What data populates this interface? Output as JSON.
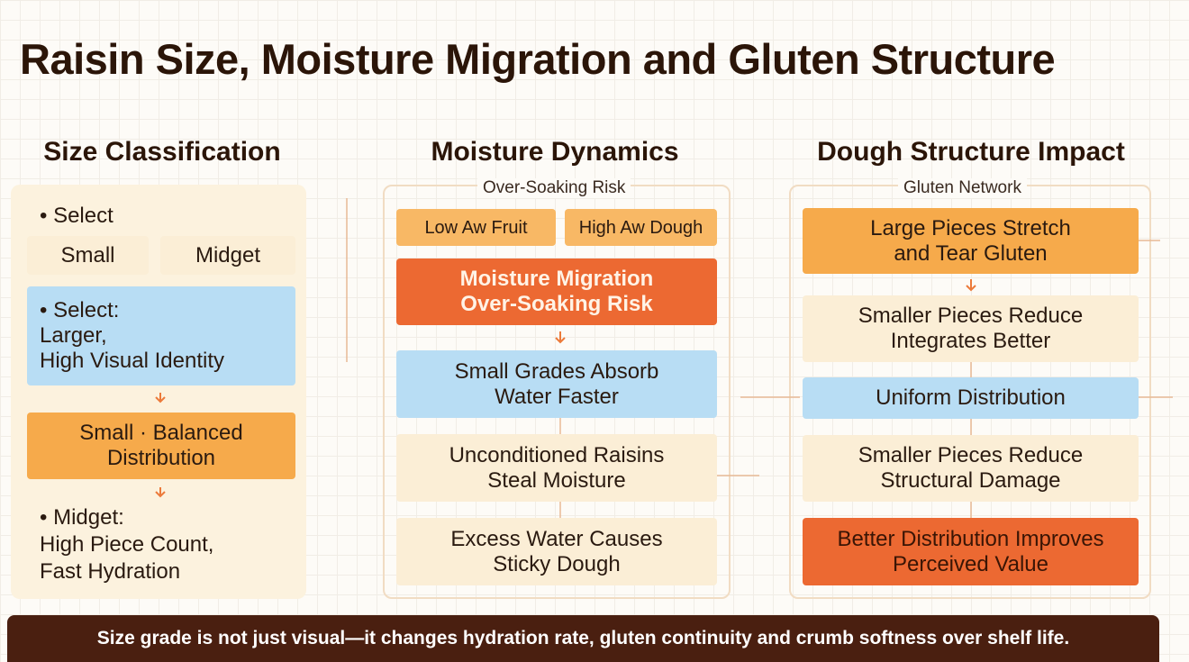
{
  "title": "Raisin Size, Moisture Migration and Gluten Structure",
  "columns": [
    {
      "heading": "Size Classification",
      "items": [
        "• Select",
        "Small",
        "Midget",
        "• Select:\nLarger,\nHigh Visual Identity",
        "Small · Balanced\nDistribution",
        "• Midget:\nHigh Piece Count,\nFast Hydration"
      ]
    },
    {
      "heading": "Moisture Dynamics",
      "label": "Over-Soaking Risk",
      "items": [
        "Low Aw Fruit",
        "High Aw Dough",
        "Moisture Migration\nOver-Soaking Risk",
        "Small Grades Absorb\nWater Faster",
        "Unconditioned Raisins\nSteal Moisture",
        "Excess Water Causes\nSticky Dough"
      ]
    },
    {
      "heading": "Dough Structure Impact",
      "label": "Gluten Network",
      "items": [
        "Large Pieces Stretch\nand Tear Gluten",
        "Smaller Pieces Reduce\nIntegrates Better",
        "Uniform Distribution",
        "Smaller Pieces Reduce\nStructural Damage",
        "Better Distribution Improves\nPerceived Value"
      ]
    }
  ],
  "footer": "Size grade is not just visual—it changes hydration rate, gluten continuity and crumb softness over shelf life."
}
